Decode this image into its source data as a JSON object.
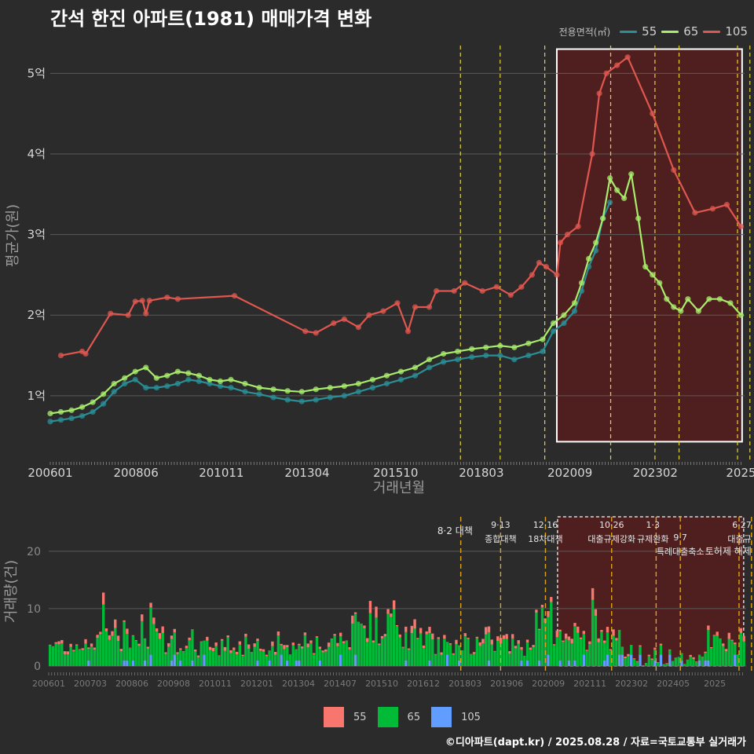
{
  "title": "간석 한진 아파트(1981) 매매가격 변화",
  "legend": {
    "title": "전용면적(㎡)",
    "items": [
      {
        "label": "55",
        "color": "#2a8f97"
      },
      {
        "label": "65",
        "color": "#a8ec6c"
      },
      {
        "label": "105",
        "color": "#e0574f"
      }
    ]
  },
  "bar_legend": [
    {
      "label": "55",
      "color": "#f8766d"
    },
    {
      "label": "65",
      "color": "#00ba38"
    },
    {
      "label": "105",
      "color": "#619cff"
    }
  ],
  "credit": "©디아파트(dapt.kr) / 2025.08.28 / 자료=국토교통부 실거래가",
  "chart_data": [
    {
      "type": "line",
      "title": "간석 한진 아파트(1981) 매매가격 변화",
      "xlabel": "거래년월",
      "ylabel": "평균가(원)",
      "xlim": [
        2006.0,
        2025.6
      ],
      "ylim": [
        0.2,
        5.5
      ],
      "x_ticks": [
        {
          "value": 2006.0,
          "label": "200601"
        },
        {
          "value": 2008.42,
          "label": "200806"
        },
        {
          "value": 2010.83,
          "label": "201011"
        },
        {
          "value": 2013.25,
          "label": "201304"
        },
        {
          "value": 2015.75,
          "label": "201510"
        },
        {
          "value": 2018.17,
          "label": "201803"
        },
        {
          "value": 2020.67,
          "label": "202009"
        },
        {
          "value": 2023.08,
          "label": "202302"
        },
        {
          "value": 2025.5,
          "label": "2025"
        }
      ],
      "y_ticks": [
        {
          "value": 1,
          "label": "1억"
        },
        {
          "value": 2,
          "label": "2억"
        },
        {
          "value": 3,
          "label": "3억"
        },
        {
          "value": 4,
          "label": "4억"
        },
        {
          "value": 5,
          "label": "5억"
        }
      ],
      "grid": true,
      "policy_lines": [
        2017.58,
        2018.7,
        2019.96,
        2021.82,
        2023.07,
        2023.75,
        2025.4,
        2025.75
      ],
      "highlight_range": [
        2020.3,
        2025.53
      ],
      "series": [
        {
          "name": "55",
          "color": "#2a8f97",
          "points": [
            [
              2006.0,
              0.68
            ],
            [
              2006.3,
              0.7
            ],
            [
              2006.6,
              0.72
            ],
            [
              2006.9,
              0.75
            ],
            [
              2007.2,
              0.8
            ],
            [
              2007.5,
              0.9
            ],
            [
              2007.8,
              1.05
            ],
            [
              2008.1,
              1.15
            ],
            [
              2008.4,
              1.2
            ],
            [
              2008.7,
              1.1
            ],
            [
              2009.0,
              1.1
            ],
            [
              2009.3,
              1.12
            ],
            [
              2009.6,
              1.15
            ],
            [
              2009.9,
              1.2
            ],
            [
              2010.2,
              1.18
            ],
            [
              2010.5,
              1.15
            ],
            [
              2010.8,
              1.12
            ],
            [
              2011.1,
              1.1
            ],
            [
              2011.5,
              1.05
            ],
            [
              2011.9,
              1.02
            ],
            [
              2012.3,
              0.98
            ],
            [
              2012.7,
              0.95
            ],
            [
              2013.1,
              0.93
            ],
            [
              2013.5,
              0.95
            ],
            [
              2013.9,
              0.98
            ],
            [
              2014.3,
              1.0
            ],
            [
              2014.7,
              1.05
            ],
            [
              2015.1,
              1.1
            ],
            [
              2015.5,
              1.15
            ],
            [
              2015.9,
              1.2
            ],
            [
              2016.3,
              1.25
            ],
            [
              2016.7,
              1.35
            ],
            [
              2017.1,
              1.42
            ],
            [
              2017.5,
              1.45
            ],
            [
              2017.9,
              1.48
            ],
            [
              2018.3,
              1.5
            ],
            [
              2018.7,
              1.5
            ],
            [
              2019.1,
              1.45
            ],
            [
              2019.5,
              1.5
            ],
            [
              2019.9,
              1.55
            ],
            [
              2020.2,
              1.8
            ],
            [
              2020.5,
              1.9
            ],
            [
              2020.8,
              2.05
            ],
            [
              2021.0,
              2.3
            ],
            [
              2021.2,
              2.6
            ],
            [
              2021.4,
              2.8
            ],
            [
              2021.6,
              3.2
            ],
            [
              2021.8,
              3.4
            ]
          ]
        },
        {
          "name": "65",
          "color": "#a8ec6c",
          "points": [
            [
              2006.0,
              0.78
            ],
            [
              2006.3,
              0.8
            ],
            [
              2006.6,
              0.82
            ],
            [
              2006.9,
              0.86
            ],
            [
              2007.2,
              0.92
            ],
            [
              2007.5,
              1.02
            ],
            [
              2007.8,
              1.15
            ],
            [
              2008.1,
              1.22
            ],
            [
              2008.4,
              1.3
            ],
            [
              2008.7,
              1.35
            ],
            [
              2009.0,
              1.22
            ],
            [
              2009.3,
              1.25
            ],
            [
              2009.6,
              1.3
            ],
            [
              2009.9,
              1.28
            ],
            [
              2010.2,
              1.25
            ],
            [
              2010.5,
              1.2
            ],
            [
              2010.8,
              1.18
            ],
            [
              2011.1,
              1.2
            ],
            [
              2011.5,
              1.15
            ],
            [
              2011.9,
              1.1
            ],
            [
              2012.3,
              1.08
            ],
            [
              2012.7,
              1.06
            ],
            [
              2013.1,
              1.05
            ],
            [
              2013.5,
              1.08
            ],
            [
              2013.9,
              1.1
            ],
            [
              2014.3,
              1.12
            ],
            [
              2014.7,
              1.15
            ],
            [
              2015.1,
              1.2
            ],
            [
              2015.5,
              1.25
            ],
            [
              2015.9,
              1.3
            ],
            [
              2016.3,
              1.35
            ],
            [
              2016.7,
              1.45
            ],
            [
              2017.1,
              1.52
            ],
            [
              2017.5,
              1.55
            ],
            [
              2017.9,
              1.58
            ],
            [
              2018.3,
              1.6
            ],
            [
              2018.7,
              1.62
            ],
            [
              2019.1,
              1.6
            ],
            [
              2019.5,
              1.65
            ],
            [
              2019.9,
              1.7
            ],
            [
              2020.2,
              1.9
            ],
            [
              2020.5,
              2.0
            ],
            [
              2020.8,
              2.15
            ],
            [
              2021.0,
              2.4
            ],
            [
              2021.2,
              2.7
            ],
            [
              2021.4,
              2.9
            ],
            [
              2021.6,
              3.2
            ],
            [
              2021.8,
              3.7
            ],
            [
              2022.0,
              3.55
            ],
            [
              2022.2,
              3.45
            ],
            [
              2022.4,
              3.75
            ],
            [
              2022.6,
              3.2
            ],
            [
              2022.8,
              2.6
            ],
            [
              2023.0,
              2.5
            ],
            [
              2023.2,
              2.4
            ],
            [
              2023.4,
              2.2
            ],
            [
              2023.6,
              2.1
            ],
            [
              2023.8,
              2.05
            ],
            [
              2024.0,
              2.2
            ],
            [
              2024.3,
              2.05
            ],
            [
              2024.6,
              2.2
            ],
            [
              2024.9,
              2.2
            ],
            [
              2025.2,
              2.15
            ],
            [
              2025.5,
              2.0
            ]
          ]
        },
        {
          "name": "105",
          "color": "#e0574f",
          "points": [
            [
              2006.3,
              1.5
            ],
            [
              2006.9,
              1.55
            ],
            [
              2007.0,
              1.52
            ],
            [
              2007.7,
              2.02
            ],
            [
              2008.2,
              2.0
            ],
            [
              2008.4,
              2.17
            ],
            [
              2008.6,
              2.18
            ],
            [
              2008.7,
              2.02
            ],
            [
              2008.8,
              2.18
            ],
            [
              2009.3,
              2.22
            ],
            [
              2009.6,
              2.2
            ],
            [
              2011.2,
              2.24
            ],
            [
              2013.2,
              1.8
            ],
            [
              2013.5,
              1.78
            ],
            [
              2014.0,
              1.9
            ],
            [
              2014.3,
              1.95
            ],
            [
              2014.7,
              1.85
            ],
            [
              2015.0,
              2.0
            ],
            [
              2015.4,
              2.05
            ],
            [
              2015.8,
              2.15
            ],
            [
              2016.1,
              1.8
            ],
            [
              2016.3,
              2.1
            ],
            [
              2016.7,
              2.1
            ],
            [
              2016.9,
              2.3
            ],
            [
              2017.4,
              2.3
            ],
            [
              2017.7,
              2.4
            ],
            [
              2018.2,
              2.3
            ],
            [
              2018.6,
              2.35
            ],
            [
              2019.0,
              2.25
            ],
            [
              2019.3,
              2.35
            ],
            [
              2019.6,
              2.5
            ],
            [
              2019.8,
              2.65
            ],
            [
              2020.0,
              2.6
            ],
            [
              2020.3,
              2.5
            ],
            [
              2020.4,
              2.9
            ],
            [
              2020.6,
              3.0
            ],
            [
              2020.9,
              3.1
            ],
            [
              2021.3,
              4.0
            ],
            [
              2021.5,
              4.75
            ],
            [
              2021.7,
              5.0
            ],
            [
              2022.0,
              5.1
            ],
            [
              2022.3,
              5.2
            ],
            [
              2023.0,
              4.5
            ],
            [
              2023.6,
              3.8
            ],
            [
              2024.2,
              3.27
            ],
            [
              2024.7,
              3.32
            ],
            [
              2025.1,
              3.37
            ],
            [
              2025.5,
              3.1
            ]
          ]
        }
      ]
    },
    {
      "type": "bar",
      "stacked": true,
      "xlabel": "",
      "ylabel": "거래량(건)",
      "ylim": [
        0,
        26
      ],
      "y_ticks": [
        0,
        10,
        20
      ],
      "x_tick_labels": [
        "200601",
        "200703",
        "200806",
        "200908",
        "201011",
        "201201",
        "201304",
        "201407",
        "201510",
        "201612",
        "201803",
        "201906",
        "202009",
        "202111",
        "202302",
        "202405",
        "2025"
      ],
      "series_names": [
        "55",
        "65",
        "105"
      ],
      "highlight_range": [
        2020.3,
        2025.53
      ],
      "annotations": [
        {
          "x": 2017.58,
          "label": "8·2 대책"
        },
        {
          "x": 2018.7,
          "label": "9·13 종합대책"
        },
        {
          "x": 2019.96,
          "label": "12·16 18차대책"
        },
        {
          "x": 2021.82,
          "label": "10·26 대출규제강화"
        },
        {
          "x": 2022.98,
          "label": "1·3 규제완화"
        },
        {
          "x": 2023.75,
          "label": "9·7 특례대출축소"
        },
        {
          "x": 2025.75,
          "label": "6·27 대출규"
        },
        {
          "x": 2025.75,
          "label": "토허제 해제"
        }
      ]
    }
  ]
}
